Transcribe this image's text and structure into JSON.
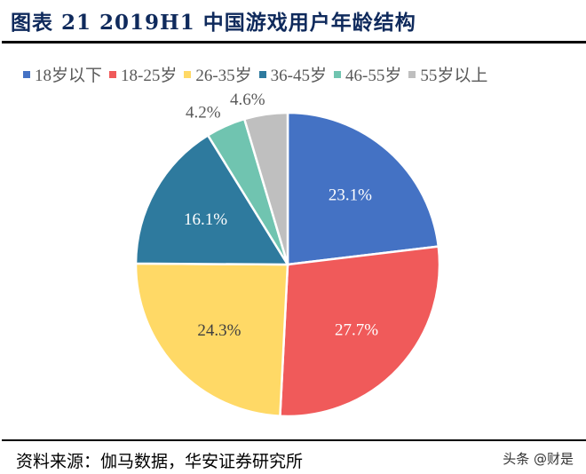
{
  "title": "图表 21 2019H1 中国游戏用户年龄结构",
  "source": "资料来源：伽马数据，华安证券研究所",
  "watermark": "头条 @财是",
  "chart_data": {
    "type": "pie",
    "title": "",
    "legend_position": "top",
    "start_angle": "12 o'clock, clockwise",
    "categories": [
      "18岁以下",
      "18-25岁",
      "26-35岁",
      "36-45岁",
      "46-55岁",
      "55岁以上"
    ],
    "values": [
      23.1,
      27.7,
      24.3,
      16.1,
      4.2,
      4.6
    ],
    "labels": [
      "23.1%",
      "27.7%",
      "24.3%",
      "16.1%",
      "4.2%",
      "4.6%"
    ],
    "colors": [
      "#4472c4",
      "#f05a5a",
      "#ffd966",
      "#2e7a9e",
      "#70c4b0",
      "#bfbfbf"
    ]
  }
}
